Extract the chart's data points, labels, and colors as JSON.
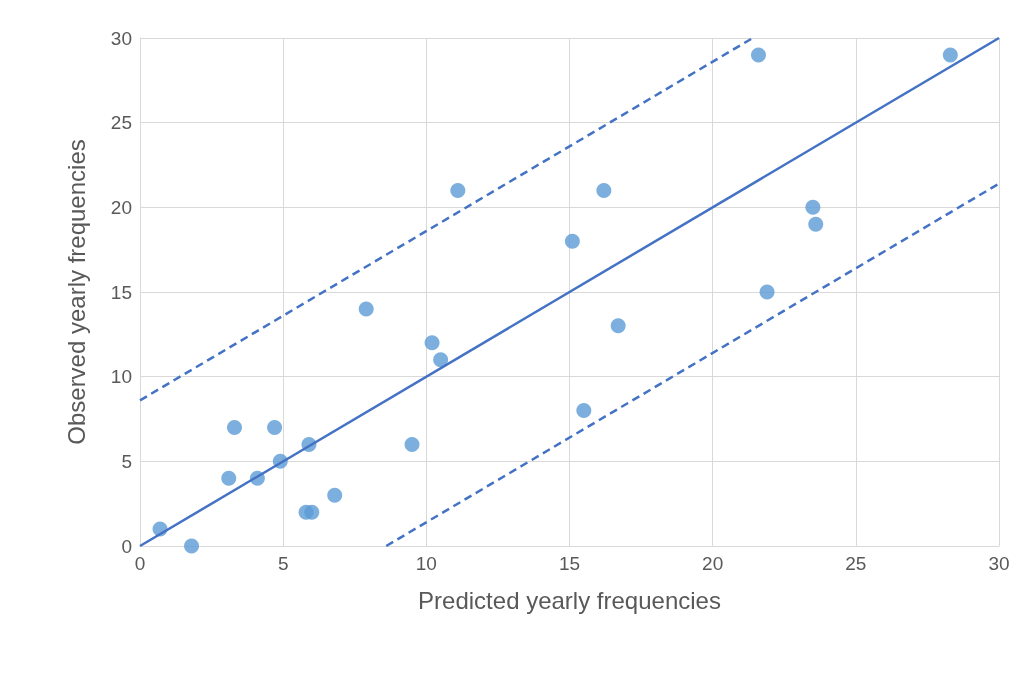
{
  "chart_data": {
    "type": "scatter",
    "xlabel": "Predicted yearly frequencies",
    "ylabel": "Observed yearly frequencies",
    "xlim": [
      0,
      30
    ],
    "xticks": [
      0,
      5,
      10,
      15,
      20,
      25,
      30
    ],
    "ylim": [
      0,
      30
    ],
    "yticks": [
      0,
      5,
      10,
      15,
      20,
      25,
      30
    ],
    "grid": true,
    "marker": "circle",
    "series": [
      {
        "type": "scatter",
        "color": "#5b9bd5",
        "x": [
          0.7,
          1.8,
          3.1,
          3.3,
          4.1,
          4.7,
          4.9,
          5.9,
          5.8,
          6.0,
          6.8,
          7.9,
          9.5,
          10.2,
          10.5,
          11.1,
          15.1,
          15.5,
          16.2,
          16.7,
          21.6,
          21.9,
          23.5,
          23.6,
          28.3
        ],
        "values": [
          1,
          0,
          4,
          7,
          4,
          7,
          5,
          6,
          2,
          2,
          3,
          14,
          6,
          12,
          11,
          21,
          18,
          8,
          21,
          13,
          29,
          15,
          20,
          19,
          29
        ]
      },
      {
        "type": "line",
        "color": "#4472c4",
        "line_style": "solid",
        "marker": "none",
        "x": [
          0,
          30
        ],
        "values": [
          0,
          30
        ]
      },
      {
        "type": "line",
        "color": "#4472c4",
        "line_style": "dashed",
        "marker": "none",
        "x": [
          0,
          21.4
        ],
        "values": [
          8.6,
          30
        ]
      },
      {
        "type": "line",
        "color": "#4472c4",
        "line_style": "dashed",
        "marker": "none",
        "x": [
          8.6,
          30
        ],
        "values": [
          0,
          21.4
        ]
      }
    ]
  }
}
